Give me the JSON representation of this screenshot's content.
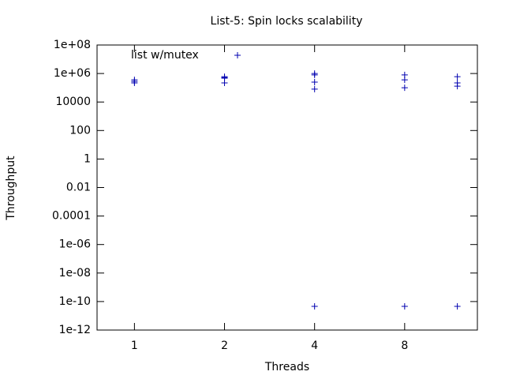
{
  "chart_data": {
    "type": "scatter",
    "title": "List-5: Spin locks scalability",
    "x_label": "Threads",
    "y_label": "Throughput",
    "x_log": true,
    "y_log": true,
    "legend": "top-left",
    "xlim": [
      0.75,
      14
    ],
    "xticks": [
      1,
      2,
      4,
      8
    ],
    "ylim": [
      1e-12,
      100000000.0
    ],
    "yticks": [
      {
        "value": 100000000.0,
        "label": "1e+08"
      },
      {
        "value": 1000000.0,
        "label": "1e+06"
      },
      10000,
      100,
      1,
      0.01,
      0.0001,
      {
        "value": 1e-06,
        "label": "1e-06"
      },
      {
        "value": 1e-08,
        "label": "1e-08"
      },
      {
        "value": 1e-10,
        "label": "1e-10"
      },
      {
        "value": 1e-12,
        "label": "1e-12"
      }
    ],
    "series": [
      {
        "name": "list w/mutex",
        "color": "#0000b0",
        "x": [
          1,
          1,
          1,
          2,
          2,
          2,
          2,
          4,
          4,
          4,
          4,
          4,
          8,
          8,
          8,
          8,
          12,
          12,
          12,
          12
        ],
        "values": [
          360000,
          280000,
          220000,
          600000,
          520000,
          470000,
          220000,
          1000000,
          800000,
          250000,
          80000,
          4.6e-11,
          800000,
          360000,
          100000,
          4.6e-11,
          600000,
          220000,
          130000,
          4.6e-11
        ]
      }
    ]
  }
}
